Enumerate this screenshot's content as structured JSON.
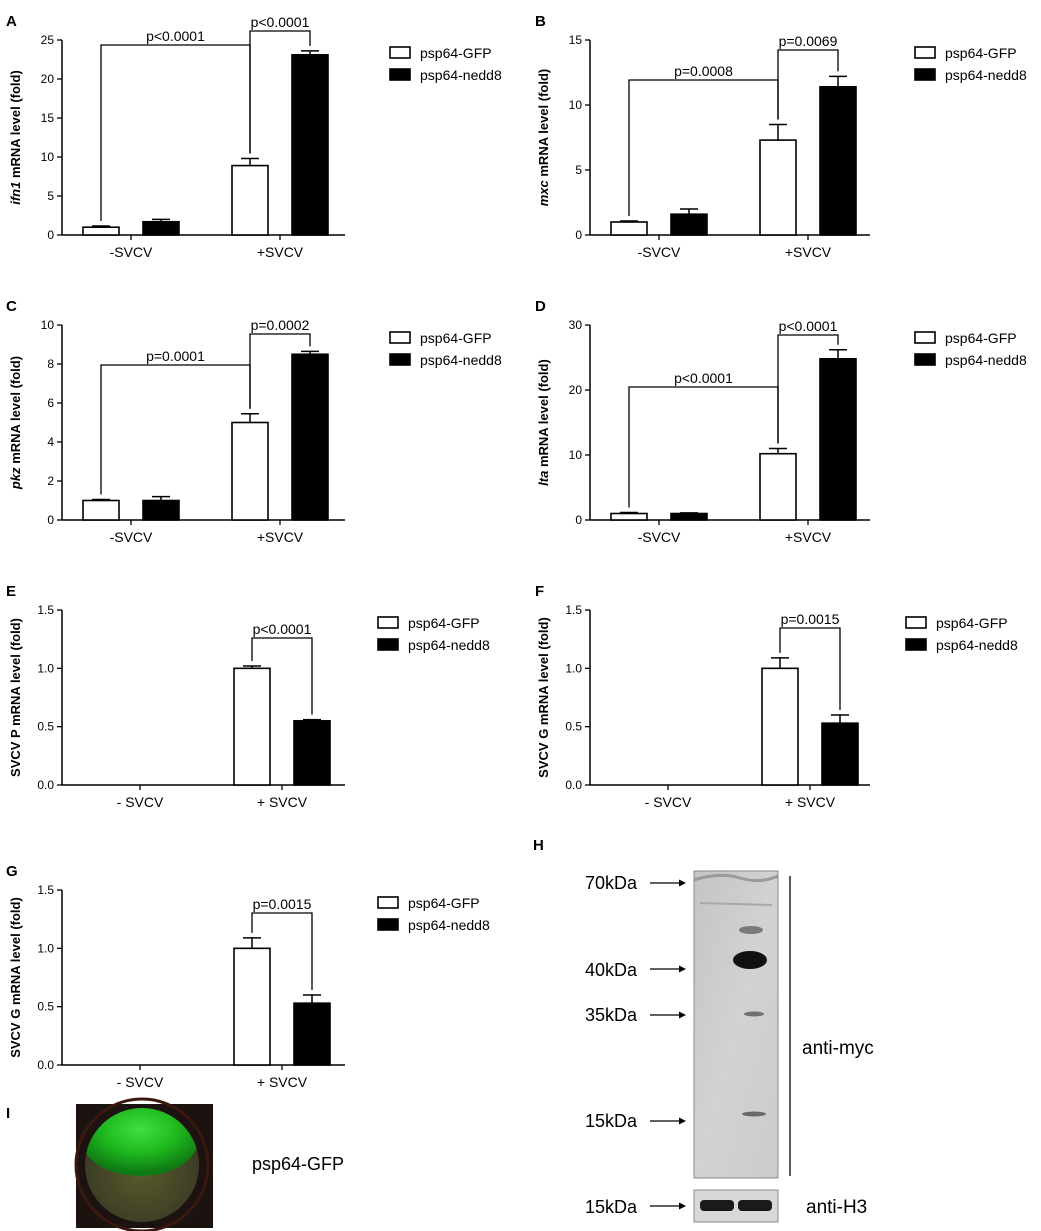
{
  "chart_data": [
    {
      "panel": "A",
      "type": "bar",
      "categories": [
        "-SVCV",
        "+SVCV"
      ],
      "series": [
        {
          "name": "psp64-GFP",
          "values": [
            1.0,
            8.9
          ],
          "errors": [
            0.15,
            0.9
          ],
          "color": "#ffffff"
        },
        {
          "name": "psp64-nedd8",
          "values": [
            1.7,
            23.1
          ],
          "errors": [
            0.3,
            0.5
          ],
          "color": "#000000"
        }
      ],
      "ylabel_gene": "ifn1",
      "ylabel_rest": " mRNA level (fold)",
      "ylabel_italic": true,
      "ylim": [
        0,
        25
      ],
      "yticks": [
        "0",
        "5",
        "10",
        "15",
        "20",
        "25"
      ],
      "tick_step": 5,
      "comparisons": [
        {
          "label": "p<0.0001",
          "from": [
            0,
            0
          ],
          "to": [
            1,
            0
          ]
        },
        {
          "label": "p<0.0001",
          "from": [
            1,
            0
          ],
          "to": [
            1,
            1
          ]
        }
      ],
      "legend": "right"
    },
    {
      "panel": "B",
      "type": "bar",
      "categories": [
        "-SVCV",
        "+SVCV"
      ],
      "series": [
        {
          "name": "psp64-GFP",
          "values": [
            1.0,
            7.3
          ],
          "errors": [
            0.08,
            1.2
          ],
          "color": "#ffffff"
        },
        {
          "name": "psp64-nedd8",
          "values": [
            1.6,
            11.4
          ],
          "errors": [
            0.4,
            0.8
          ],
          "color": "#000000"
        }
      ],
      "ylabel_gene": "mxc",
      "ylabel_rest": " mRNA level (fold)",
      "ylabel_italic": true,
      "ylim": [
        0,
        15
      ],
      "yticks": [
        "0",
        "5",
        "10",
        "15"
      ],
      "tick_step": 5,
      "comparisons": [
        {
          "label": "p=0.0008",
          "from": [
            0,
            0
          ],
          "to": [
            1,
            0
          ]
        },
        {
          "label": "p=0.0069",
          "from": [
            1,
            0
          ],
          "to": [
            1,
            1
          ]
        }
      ],
      "legend": "right"
    },
    {
      "panel": "C",
      "type": "bar",
      "categories": [
        "-SVCV",
        "+SVCV"
      ],
      "series": [
        {
          "name": "psp64-GFP",
          "values": [
            1.0,
            5.0
          ],
          "errors": [
            0.05,
            0.45
          ],
          "color": "#ffffff"
        },
        {
          "name": "psp64-nedd8",
          "values": [
            1.0,
            8.5
          ],
          "errors": [
            0.2,
            0.15
          ],
          "color": "#000000"
        }
      ],
      "ylabel_gene": "pkz",
      "ylabel_rest": " mRNA level (fold)",
      "ylabel_italic": true,
      "ylim": [
        0,
        10
      ],
      "yticks": [
        "0",
        "2",
        "4",
        "6",
        "8",
        "10"
      ],
      "tick_step": 2,
      "comparisons": [
        {
          "label": "p=0.0001",
          "from": [
            0,
            0
          ],
          "to": [
            1,
            0
          ]
        },
        {
          "label": "p=0.0002",
          "from": [
            1,
            0
          ],
          "to": [
            1,
            1
          ]
        }
      ],
      "legend": "right"
    },
    {
      "panel": "D",
      "type": "bar",
      "categories": [
        "-SVCV",
        "+SVCV"
      ],
      "series": [
        {
          "name": "psp64-GFP",
          "values": [
            1.0,
            10.2
          ],
          "errors": [
            0.15,
            0.8
          ],
          "color": "#ffffff"
        },
        {
          "name": "psp64-nedd8",
          "values": [
            1.0,
            24.8
          ],
          "errors": [
            0.1,
            1.4
          ],
          "color": "#000000"
        }
      ],
      "ylabel_gene": "lta",
      "ylabel_rest": " mRNA level (fold)",
      "ylabel_italic": true,
      "ylim": [
        0,
        30
      ],
      "yticks": [
        "0",
        "10",
        "20",
        "30"
      ],
      "tick_step": 10,
      "comparisons": [
        {
          "label": "p<0.0001",
          "from": [
            0,
            0
          ],
          "to": [
            1,
            0
          ]
        },
        {
          "label": "p<0.0001",
          "from": [
            1,
            0
          ],
          "to": [
            1,
            1
          ]
        }
      ],
      "legend": "right"
    },
    {
      "panel": "E",
      "type": "bar",
      "categories": [
        "- SVCV",
        "+ SVCV"
      ],
      "series": [
        {
          "name": "psp64-GFP",
          "values": [
            0,
            1.0
          ],
          "errors": [
            0,
            0.02
          ],
          "color": "#ffffff"
        },
        {
          "name": "psp64-nedd8",
          "values": [
            0,
            0.55
          ],
          "errors": [
            0,
            0.01
          ],
          "color": "#000000"
        }
      ],
      "ylabel_gene": "SVCV P",
      "ylabel_rest": " mRNA level (fold)",
      "ylabel_italic": false,
      "ylim": [
        0,
        1.5
      ],
      "yticks": [
        "0.0",
        "0.5",
        "1.0",
        "1.5"
      ],
      "tick_step": 0.5,
      "comparisons": [
        {
          "label": "p<0.0001",
          "from": [
            1,
            0
          ],
          "to": [
            1,
            1
          ]
        }
      ],
      "legend": "right"
    },
    {
      "panel": "F",
      "type": "bar",
      "categories": [
        "- SVCV",
        "+ SVCV"
      ],
      "series": [
        {
          "name": "psp64-GFP",
          "values": [
            0,
            1.0
          ],
          "errors": [
            0,
            0.09
          ],
          "color": "#ffffff"
        },
        {
          "name": "psp64-nedd8",
          "values": [
            0,
            0.53
          ],
          "errors": [
            0,
            0.07
          ],
          "color": "#000000"
        }
      ],
      "ylabel_gene": "SVCV G",
      "ylabel_rest": " mRNA level (fold)",
      "ylabel_italic": false,
      "ylim": [
        0,
        1.5
      ],
      "yticks": [
        "0.0",
        "0.5",
        "1.0",
        "1.5"
      ],
      "tick_step": 0.5,
      "comparisons": [
        {
          "label": "p=0.0015",
          "from": [
            1,
            0
          ],
          "to": [
            1,
            1
          ]
        }
      ],
      "legend": "right"
    },
    {
      "panel": "G",
      "type": "bar",
      "categories": [
        "- SVCV",
        "+ SVCV"
      ],
      "series": [
        {
          "name": "psp64-GFP",
          "values": [
            0,
            1.0
          ],
          "errors": [
            0,
            0.09
          ],
          "color": "#ffffff"
        },
        {
          "name": "psp64-nedd8",
          "values": [
            0,
            0.53
          ],
          "errors": [
            0,
            0.07
          ],
          "color": "#000000"
        }
      ],
      "ylabel_gene": "SVCV G",
      "ylabel_rest": " mRNA level (fold)",
      "ylabel_italic": false,
      "ylim": [
        0,
        1.5
      ],
      "yticks": [
        "0.0",
        "0.5",
        "1.0",
        "1.5"
      ],
      "tick_step": 0.5,
      "comparisons": [
        {
          "label": "p=0.0015",
          "from": [
            1,
            0
          ],
          "to": [
            1,
            1
          ]
        }
      ],
      "legend": "right"
    }
  ],
  "blot": {
    "panel": "H",
    "markers": [
      "70kDa",
      "40kDa",
      "35kDa",
      "15kDa"
    ],
    "main_label": "anti-myc",
    "loading_marker": "15kDa",
    "loading_label": "anti-H3"
  },
  "fluorescence": {
    "panel": "I",
    "label": "psp64-GFP"
  }
}
